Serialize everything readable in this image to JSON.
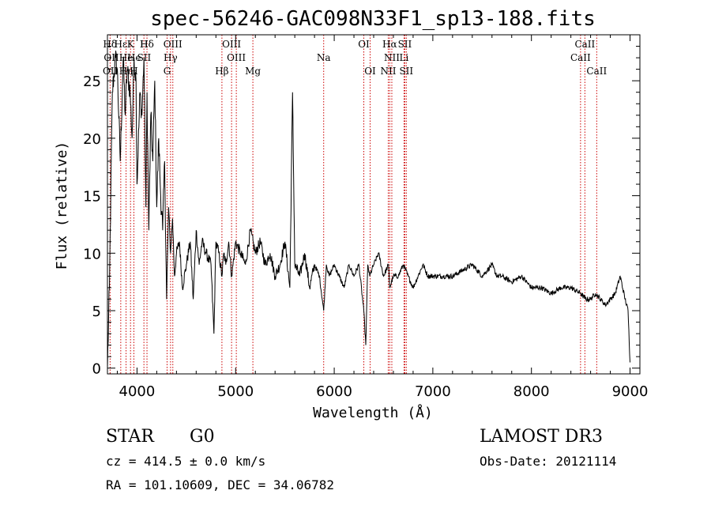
{
  "chart_data": {
    "type": "line",
    "title": "spec-56246-GAC098N33F1_sp13-188.fits",
    "xlabel": "Wavelength (Å)",
    "ylabel": "Flux (relative)",
    "xlim": [
      3700,
      9100
    ],
    "ylim": [
      -0.5,
      29
    ],
    "xticks": [
      4000,
      5000,
      6000,
      7000,
      8000,
      9000
    ],
    "xtick_labels": [
      "4000",
      "5000",
      "6000",
      "7000",
      "8000",
      "9000"
    ],
    "yticks": [
      0,
      5,
      10,
      15,
      20,
      25
    ],
    "ytick_labels": [
      "0",
      "5",
      "10",
      "15",
      "20",
      "25"
    ],
    "series": [
      {
        "name": "flux",
        "x": [
          3700,
          3720,
          3750,
          3780,
          3800,
          3830,
          3860,
          3880,
          3900,
          3930,
          3950,
          3970,
          3990,
          4000,
          4030,
          4050,
          4070,
          4090,
          4101,
          4120,
          4140,
          4160,
          4180,
          4200,
          4220,
          4240,
          4260,
          4280,
          4300,
          4320,
          4340,
          4360,
          4380,
          4400,
          4430,
          4460,
          4500,
          4540,
          4570,
          4600,
          4630,
          4660,
          4700,
          4750,
          4780,
          4800,
          4830,
          4861,
          4880,
          4900,
          4930,
          4960,
          5000,
          5050,
          5100,
          5150,
          5200,
          5250,
          5300,
          5350,
          5400,
          5450,
          5500,
          5550,
          5577,
          5600,
          5650,
          5700,
          5750,
          5800,
          5850,
          5893,
          5920,
          5950,
          6000,
          6050,
          6100,
          6150,
          6200,
          6250,
          6300,
          6320,
          6340,
          6360,
          6400,
          6450,
          6500,
          6550,
          6563,
          6600,
          6650,
          6700,
          6750,
          6800,
          6850,
          6900,
          6950,
          7000,
          7100,
          7200,
          7300,
          7400,
          7500,
          7600,
          7650,
          7700,
          7800,
          7900,
          8000,
          8100,
          8200,
          8300,
          8400,
          8500,
          8550,
          8600,
          8650,
          8700,
          8750,
          8800,
          8850,
          8900,
          8950,
          8980,
          9000
        ],
        "values": [
          0,
          7,
          24,
          27,
          26,
          18,
          27,
          22,
          26,
          24,
          20,
          27,
          25,
          16,
          24,
          22,
          27,
          14,
          24,
          12,
          22,
          18,
          25,
          14,
          20,
          15,
          12,
          18,
          6,
          14,
          10,
          13,
          8,
          10,
          11,
          7,
          9,
          11,
          6,
          12,
          9,
          11,
          10,
          9,
          3,
          11,
          10,
          8,
          10,
          9,
          11,
          8,
          11,
          10,
          9,
          12,
          10,
          11,
          9,
          10,
          8,
          9,
          11,
          7,
          24,
          9,
          8,
          10,
          7,
          9,
          8,
          5,
          9,
          8,
          9,
          8,
          7,
          9,
          8,
          9,
          5,
          2,
          9,
          8,
          9,
          10,
          8,
          9,
          7,
          8,
          8,
          9,
          8,
          7,
          8,
          9,
          8,
          8,
          8,
          8,
          8.5,
          9,
          8,
          9,
          8,
          8,
          7.5,
          8,
          7,
          7,
          6.5,
          7,
          7,
          6.5,
          6,
          6,
          6.5,
          6,
          5.5,
          6,
          6.5,
          8,
          6,
          5,
          0.5
        ]
      }
    ],
    "annotations": {
      "spectral_lines": [
        {
          "label": "Hδ",
          "wavelength": 3726,
          "row": 0
        },
        {
          "label": "OII",
          "wavelength": 3729,
          "row": 2
        },
        {
          "label": "OII",
          "wavelength": 3740,
          "row": 1
        },
        {
          "label": "Hε",
          "wavelength": 3835,
          "row": 0
        },
        {
          "label": "Hη",
          "wavelength": 3889,
          "row": 2
        },
        {
          "label": "He",
          "wavelength": 3889,
          "row": 1
        },
        {
          "label": "K",
          "wavelength": 3934,
          "row": 0
        },
        {
          "label": "He",
          "wavelength": 3970,
          "row": 1
        },
        {
          "label": "H",
          "wavelength": 3968,
          "row": 2
        },
        {
          "label": "H",
          "wavelength": 4070,
          "row": 0
        },
        {
          "label": "SII",
          "wavelength": 4072,
          "row": 1
        },
        {
          "label": "Hδ",
          "wavelength": 4101,
          "row": 0
        },
        {
          "label": "OIII",
          "wavelength": 4363,
          "row": 0
        },
        {
          "label": "Hγ",
          "wavelength": 4340,
          "row": 1
        },
        {
          "label": "G",
          "wavelength": 4305,
          "row": 2
        },
        {
          "label": "OIII",
          "wavelength": 4959,
          "row": 0
        },
        {
          "label": "OIII",
          "wavelength": 5007,
          "row": 1
        },
        {
          "label": "Hβ",
          "wavelength": 4861,
          "row": 2
        },
        {
          "label": "Mg",
          "wavelength": 5175,
          "row": 2
        },
        {
          "label": "Na",
          "wavelength": 5893,
          "row": 1
        },
        {
          "label": "OI",
          "wavelength": 6300,
          "row": 0
        },
        {
          "label": "OI",
          "wavelength": 6364,
          "row": 2
        },
        {
          "label": "Hα",
          "wavelength": 6563,
          "row": 0
        },
        {
          "label": "SII",
          "wavelength": 6716,
          "row": 0
        },
        {
          "label": "NII",
          "wavelength": 6584,
          "row": 1
        },
        {
          "label": "Li",
          "wavelength": 6708,
          "row": 1
        },
        {
          "label": "NII",
          "wavelength": 6548,
          "row": 2
        },
        {
          "label": "SII",
          "wavelength": 6731,
          "row": 2
        },
        {
          "label": "CaII",
          "wavelength": 8542,
          "row": 0
        },
        {
          "label": "CaII",
          "wavelength": 8498,
          "row": 1
        },
        {
          "label": "CaII",
          "wavelength": 8662,
          "row": 2
        }
      ],
      "line_markers": [
        3727,
        3835,
        3889,
        3934,
        3968,
        4070,
        4101,
        4305,
        4340,
        4363,
        4861,
        4959,
        5007,
        5175,
        5893,
        6300,
        6364,
        6548,
        6563,
        6584,
        6708,
        6716,
        6731,
        8498,
        8542,
        8662
      ]
    }
  },
  "info": {
    "class_label": "STAR",
    "subclass": "G0",
    "survey": "LAMOST DR3",
    "cz": "cz = 414.5 ± 0.0 km/s",
    "obs_date": "Obs-Date: 20121114",
    "coords": "RA = 101.10609, DEC =  34.06782"
  },
  "colors": {
    "line_marker": "#cc0000",
    "spectrum": "#000000"
  }
}
